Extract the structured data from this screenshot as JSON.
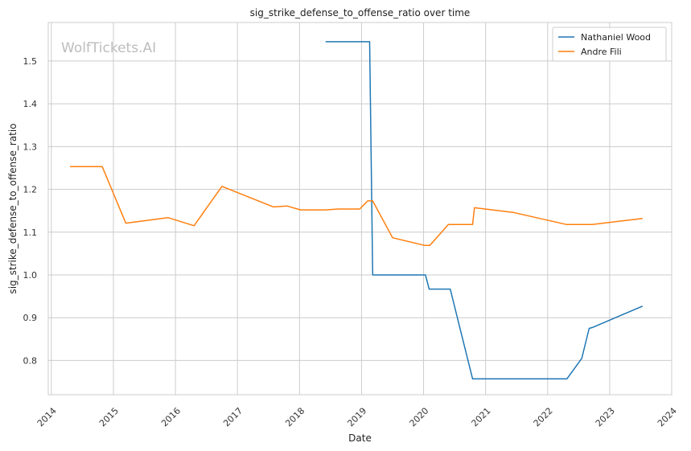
{
  "chart_data": {
    "type": "line",
    "title": "sig_strike_defense_to_offense_ratio over time",
    "xlabel": "Date",
    "ylabel": "sig_strike_defense_to_offense_ratio",
    "watermark": "WolfTickets.AI",
    "xlim": [
      2013.95,
      2024.0
    ],
    "ylim": [
      0.72,
      1.59
    ],
    "x_ticks": [
      2014,
      2015,
      2016,
      2017,
      2018,
      2019,
      2020,
      2021,
      2022,
      2023,
      2024
    ],
    "x_tick_labels": [
      "2014",
      "2015",
      "2016",
      "2017",
      "2018",
      "2019",
      "2020",
      "2021",
      "2022",
      "2023",
      "2024"
    ],
    "y_ticks": [
      0.8,
      0.9,
      1.0,
      1.1,
      1.2,
      1.3,
      1.4,
      1.5
    ],
    "y_tick_labels": [
      "0.8",
      "0.9",
      "1.0",
      "1.1",
      "1.2",
      "1.3",
      "1.4",
      "1.5"
    ],
    "grid": true,
    "legend_position": "top-right",
    "series": [
      {
        "name": "Nathaniel Wood",
        "color": "#1f77b4",
        "x": [
          2018.42,
          2019.13,
          2019.18,
          2020.03,
          2020.09,
          2020.43,
          2020.79,
          2022.31,
          2022.55,
          2022.67,
          2022.72,
          2023.53
        ],
        "y": [
          1.545,
          1.545,
          1.0,
          1.0,
          0.967,
          0.967,
          0.757,
          0.757,
          0.805,
          0.875,
          0.877,
          0.927
        ]
      },
      {
        "name": "Andre Fili",
        "color": "#ff7f0e",
        "x": [
          2014.3,
          2014.82,
          2015.2,
          2015.88,
          2016.3,
          2016.75,
          2017.58,
          2017.8,
          2018.02,
          2018.42,
          2018.62,
          2018.97,
          2019.1,
          2019.18,
          2019.5,
          2020.02,
          2020.1,
          2020.4,
          2020.79,
          2020.82,
          2021.45,
          2022.3,
          2022.72,
          2023.53
        ],
        "y": [
          1.253,
          1.253,
          1.121,
          1.134,
          1.115,
          1.207,
          1.159,
          1.161,
          1.152,
          1.152,
          1.154,
          1.154,
          1.173,
          1.173,
          1.087,
          1.069,
          1.069,
          1.118,
          1.118,
          1.157,
          1.146,
          1.118,
          1.118,
          1.132
        ]
      }
    ]
  }
}
